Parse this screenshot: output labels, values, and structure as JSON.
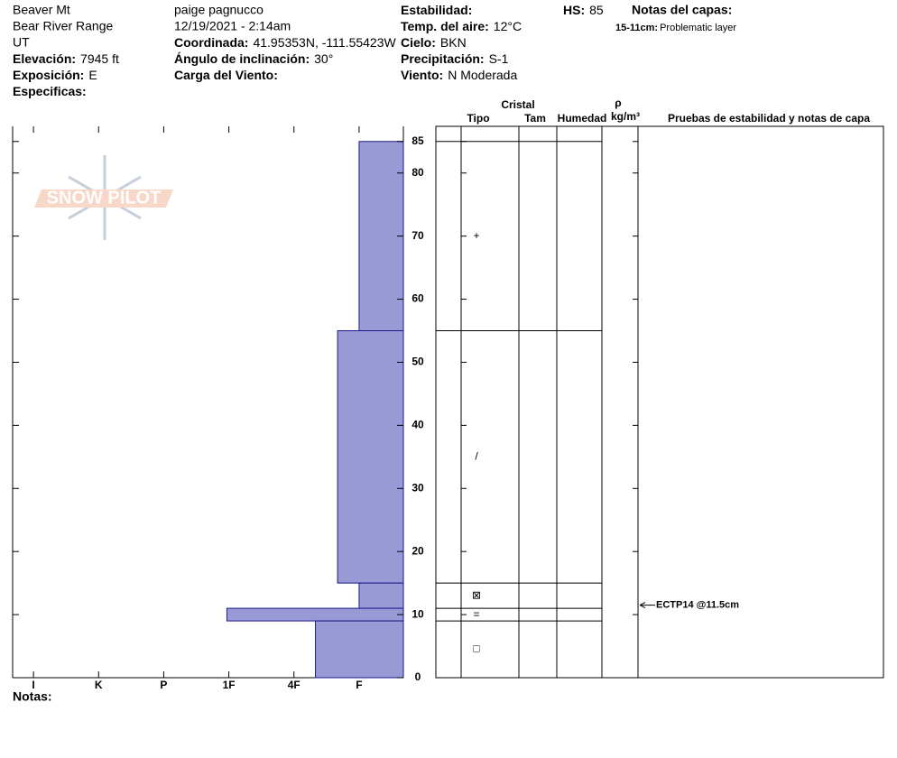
{
  "header": {
    "col1": {
      "lines": [
        "Beaver Mt",
        "Bear River Range",
        "UT"
      ],
      "fields": [
        {
          "label": "Elevación:",
          "value": "7945 ft"
        },
        {
          "label": "Exposición:",
          "value": "E"
        },
        {
          "label": "Especificas:"
        }
      ]
    },
    "col2": {
      "lines": [
        "paige pagnucco",
        "12/19/2021 - 2:14am"
      ],
      "fields": [
        {
          "label": "Coordinada:",
          "value": "41.95353N, -111.55423W"
        },
        {
          "label": "Ángulo de inclinación:",
          "value": "30°"
        },
        {
          "label": "Carga del Viento:"
        }
      ]
    },
    "col3": {
      "fields": [
        {
          "label": "Estabilidad:"
        },
        {
          "label": "Temp. del aire:",
          "value": "12°C"
        },
        {
          "label": "Cielo:",
          "value": "BKN"
        },
        {
          "label": "Precipitación:",
          "value": "S-1"
        },
        {
          "label": "Viento:",
          "value": "N Moderada"
        }
      ]
    },
    "hs": {
      "label": "HS:",
      "value": 85
    },
    "layer_notes": {
      "title": "Notas del capas:",
      "notes": [
        {
          "depth": "15-11cm:",
          "text": "Problematic layer"
        }
      ]
    }
  },
  "logo": "SNOW PILOT",
  "chart_data": {
    "type": "snow-profile",
    "xlim": [
      6.32,
      0.32
    ],
    "xticks": [
      {
        "value": 6,
        "label": "I"
      },
      {
        "value": 5,
        "label": "K"
      },
      {
        "value": 4,
        "label": "P"
      },
      {
        "value": 3,
        "label": "1F"
      },
      {
        "value": 2,
        "label": "4F"
      },
      {
        "value": 1,
        "label": "F"
      }
    ],
    "ylim": [
      0,
      87.4
    ],
    "yticks": [
      0,
      10,
      20,
      30,
      40,
      50,
      60,
      70,
      80,
      85
    ],
    "color": "#9999d6",
    "layers": [
      {
        "top": 85,
        "bottom": 55,
        "hardness": 1,
        "grain": "+"
      },
      {
        "top": 55,
        "bottom": 15,
        "hardness": 1.33,
        "grain": "/"
      },
      {
        "top": 15,
        "bottom": 11,
        "hardness": 1,
        "grain": "⊠"
      },
      {
        "top": 11,
        "bottom": 9,
        "hardness": 3.03,
        "grain": "="
      },
      {
        "top": 9,
        "bottom": 0,
        "hardness": 1.67,
        "grain": "□"
      }
    ],
    "columns": {
      "crystal": "Cristal",
      "type": "Tipo",
      "size": "Tam",
      "moisture": "Humedad",
      "density": "ρ",
      "density_unit": "kg/m³",
      "tests": "Pruebas de estabilidad y notas de capa"
    },
    "tests": [
      {
        "depth": 11.5,
        "label": "ECTP14 @11.5cm"
      }
    ]
  },
  "notes_label": "Notas:"
}
